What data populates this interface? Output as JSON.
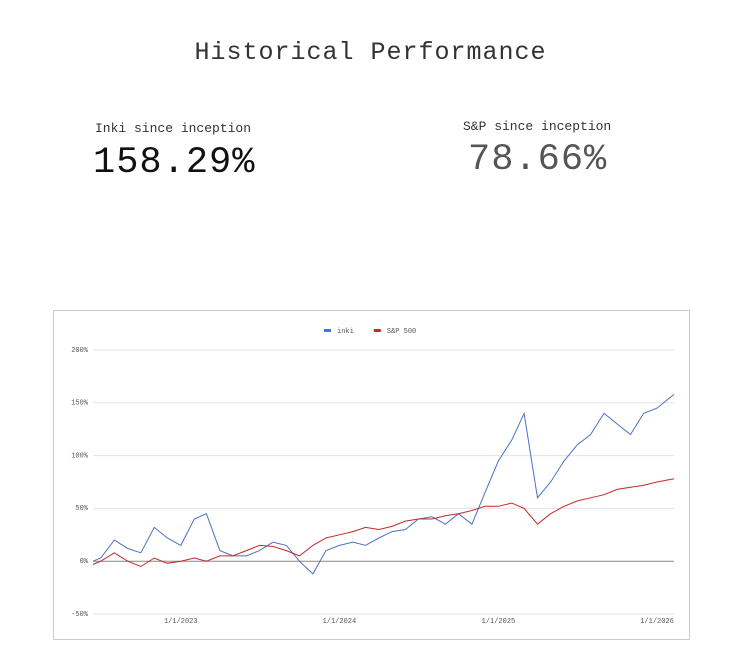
{
  "header": {
    "title": "Historical Performance"
  },
  "stats": [
    {
      "label": "Inki since inception",
      "value": "158.29%"
    },
    {
      "label": "S&P since inception",
      "value": "78.66%"
    }
  ],
  "chart_data": {
    "type": "line",
    "x": [
      "6/13/2022",
      "7/1/2022",
      "8/1/2022",
      "9/1/2022",
      "10/1/2022",
      "11/1/2022",
      "12/1/2022",
      "1/1/2023",
      "2/1/2023",
      "3/1/2023",
      "4/1/2023",
      "5/1/2023",
      "6/1/2023",
      "7/1/2023",
      "8/1/2023",
      "9/1/2023",
      "10/1/2023",
      "11/1/2023",
      "12/1/2023",
      "1/1/2024",
      "2/1/2024",
      "3/1/2024",
      "4/1/2024",
      "5/1/2024",
      "6/1/2024",
      "7/1/2024",
      "8/1/2024",
      "9/1/2024",
      "10/1/2024",
      "11/1/2024",
      "12/1/2024",
      "1/1/2025",
      "2/1/2025",
      "3/1/2025",
      "4/1/2025",
      "5/1/2025",
      "6/1/2025",
      "7/1/2025",
      "8/1/2025",
      "9/1/2025",
      "10/1/2025",
      "11/1/2025",
      "12/1/2025",
      "1/1/2026",
      "2/9/2026"
    ],
    "series": [
      {
        "name": "inki",
        "color": "#4a72c8",
        "values": [
          0,
          3,
          20,
          12,
          8,
          32,
          22,
          15,
          40,
          45,
          10,
          5,
          5,
          10,
          18,
          15,
          0,
          -12,
          10,
          15,
          18,
          15,
          22,
          28,
          30,
          40,
          42,
          35,
          45,
          35,
          65,
          95,
          115,
          140,
          60,
          75,
          95,
          110,
          120,
          140,
          130,
          120,
          140,
          145,
          158
        ]
      },
      {
        "name": "S&P 500",
        "color": "#c62828",
        "values": [
          -3,
          0,
          8,
          0,
          -5,
          3,
          -2,
          0,
          3,
          0,
          5,
          5,
          10,
          15,
          14,
          10,
          5,
          15,
          22,
          25,
          28,
          32,
          30,
          33,
          38,
          40,
          40,
          43,
          45,
          48,
          52,
          52,
          55,
          50,
          35,
          45,
          52,
          57,
          60,
          63,
          68,
          70,
          72,
          75,
          78
        ]
      }
    ],
    "xlim": [
      "6/13/2022",
      "2/9/2026"
    ],
    "xticks": [
      "1/1/2023",
      "1/1/2024",
      "1/1/2025",
      "1/1/2026"
    ],
    "ylim": [
      -50,
      200
    ],
    "yticks": [
      {
        "value": -50,
        "label": "-50%"
      },
      {
        "value": 0,
        "label": "0%"
      },
      {
        "value": 50,
        "label": "50%"
      },
      {
        "value": 100,
        "label": "100%"
      },
      {
        "value": 150,
        "label": "150%"
      },
      {
        "value": 200,
        "label": "200%"
      }
    ],
    "grid": true,
    "legend": "top"
  }
}
